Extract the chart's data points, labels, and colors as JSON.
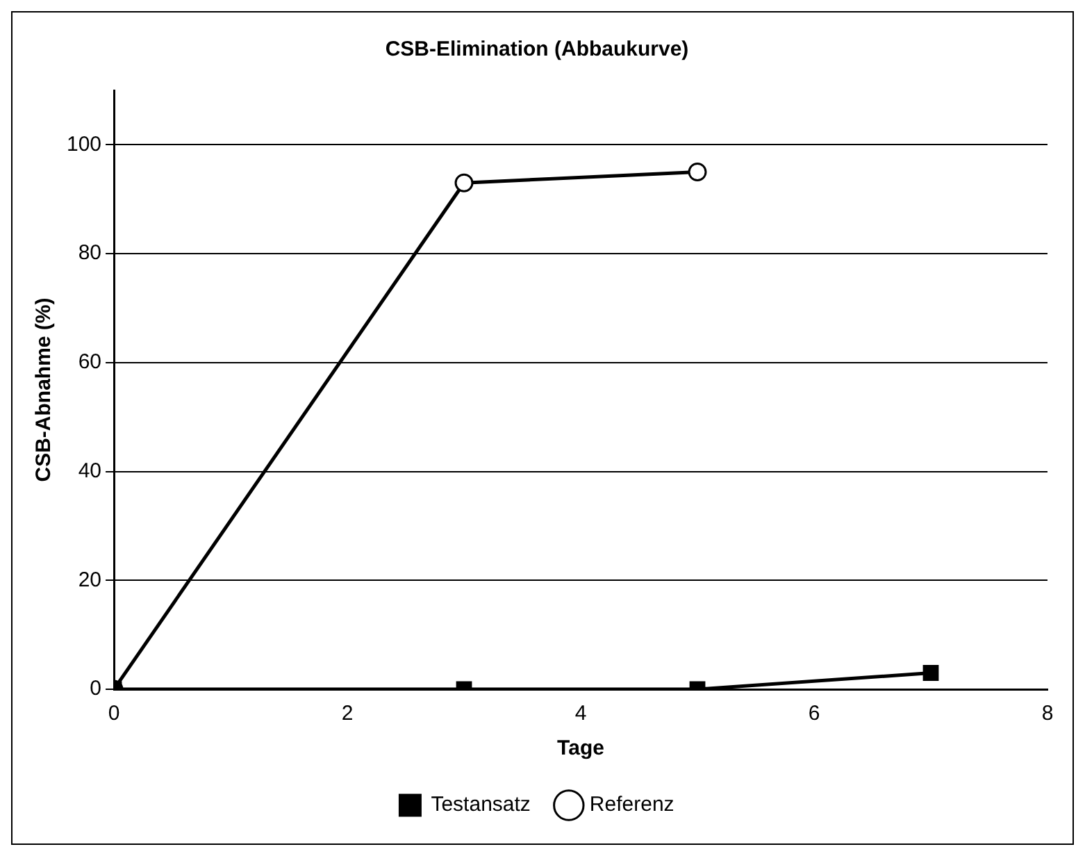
{
  "chart_data": {
    "type": "line",
    "title": "CSB-Elimination (Abbaukurve)",
    "xlabel": "Tage",
    "ylabel": "CSB-Abnahme (%)",
    "series": [
      {
        "name": "Testansatz",
        "color": "#000000",
        "marker": "square",
        "x": [
          0,
          3,
          5,
          7
        ],
        "values": [
          0,
          0,
          0,
          3
        ]
      },
      {
        "name": "Referenz",
        "color": "#000000",
        "marker": "circle",
        "x": [
          0,
          3,
          5
        ],
        "values": [
          0,
          93,
          95
        ]
      }
    ],
    "xlim": [
      0,
      8
    ],
    "xticks": [
      0,
      2,
      4,
      6,
      8
    ],
    "ylim": [
      0,
      110
    ],
    "yticks": [
      0,
      20,
      40,
      60,
      80,
      100
    ],
    "grid": "y",
    "legend": "bottom",
    "line_style": "solid"
  }
}
